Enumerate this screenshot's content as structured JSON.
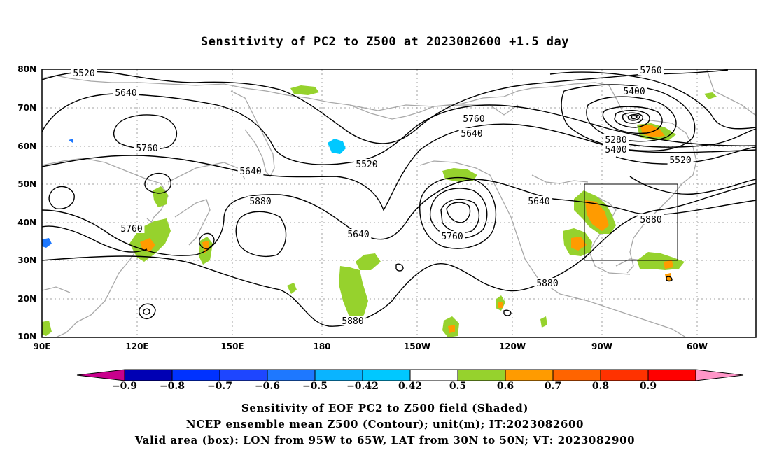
{
  "title": "Sensitivity of PC2 to Z500 at 2023082600 +1.5 day",
  "lat_labels": [
    "80N",
    "70N",
    "60N",
    "50N",
    "40N",
    "30N",
    "20N",
    "10N"
  ],
  "lon_labels": [
    "90E",
    "120E",
    "150E",
    "180",
    "150W",
    "120W",
    "90W",
    "60W"
  ],
  "contour_labels": [
    "5520",
    "5640",
    "5760",
    "5640",
    "5880",
    "5760",
    "5520",
    "5640",
    "5760",
    "5880",
    "5760",
    "5640",
    "5760",
    "5880",
    "5880",
    "5760",
    "5400",
    "5280",
    "5400",
    "5520",
    "5640",
    "5880",
    "5760"
  ],
  "colorbar": {
    "colors": [
      "#c8008c",
      "#0000b4",
      "#0032ff",
      "#1e46ff",
      "#1e78ff",
      "#0ab4ff",
      "#00c8ff",
      "#ffffff",
      "#96d22d",
      "#ff9b00",
      "#ff6400",
      "#ff3200",
      "#ff0000",
      "#ff96c8"
    ],
    "labels": [
      "−0.9",
      "−0.8",
      "−0.7",
      "−0.6",
      "−0.5",
      "−0.42",
      "0.42",
      "0.5",
      "0.6",
      "0.7",
      "0.8",
      "0.9"
    ]
  },
  "box": {
    "lon_from": "95W",
    "lon_to": "65W",
    "lat_from": "30N",
    "lat_to": "50N"
  },
  "captions": {
    "line1": "Sensitivity of EOF PC2 to Z500 field (Shaded)",
    "line2": "NCEP ensemble mean Z500 (Contour); unit(m); IT:2023082600",
    "line3": "Valid area (box): LON from 95W to 65W, LAT from 30N to 50N; VT: 2023082900"
  }
}
